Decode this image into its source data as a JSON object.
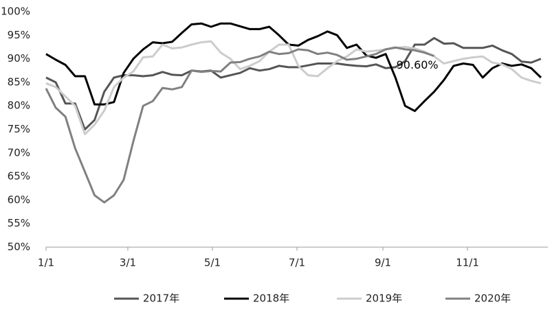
{
  "chart_data": {
    "type": "line",
    "xlim": [
      0,
      362
    ],
    "xticks": [
      {
        "value": 0,
        "label": "1/1"
      },
      {
        "value": 59,
        "label": "3/1"
      },
      {
        "value": 120,
        "label": "5/1"
      },
      {
        "value": 181,
        "label": "7/1"
      },
      {
        "value": 243,
        "label": "9/1"
      },
      {
        "value": 304,
        "label": "11/1"
      }
    ],
    "ylim": [
      50,
      100
    ],
    "yticks": [
      {
        "value": 50,
        "label": "50%"
      },
      {
        "value": 55,
        "label": "55%"
      },
      {
        "value": 60,
        "label": "60%"
      },
      {
        "value": 65,
        "label": "65%"
      },
      {
        "value": 70,
        "label": "70%"
      },
      {
        "value": 75,
        "label": "75%"
      },
      {
        "value": 80,
        "label": "80%"
      },
      {
        "value": 85,
        "label": "85%"
      },
      {
        "value": 90,
        "label": "90%"
      },
      {
        "value": 95,
        "label": "95%"
      },
      {
        "value": 100,
        "label": "100%"
      }
    ],
    "grid": false,
    "legend": "bottom",
    "x": [
      0,
      7,
      14,
      21,
      28,
      35,
      42,
      49,
      56,
      63,
      70,
      77,
      84,
      91,
      98,
      105,
      112,
      119,
      126,
      133,
      140,
      147,
      154,
      161,
      168,
      175,
      182,
      189,
      196,
      203,
      210,
      217,
      224,
      231,
      238,
      245,
      252,
      259,
      266,
      273,
      280,
      287,
      294,
      301,
      308,
      315,
      322,
      329,
      336,
      343,
      350,
      357
    ],
    "series": [
      {
        "name": "2017年",
        "color": "#555555",
        "values": [
          86,
          85,
          80.5,
          80.5,
          75,
          77,
          83,
          86,
          86.5,
          86.5,
          86.3,
          86.5,
          87.2,
          86.6,
          86.5,
          87.5,
          87.3,
          87.5,
          86,
          86.5,
          87,
          88,
          87.5,
          87.8,
          88.5,
          88.2,
          88.2,
          88.6,
          89,
          89,
          89,
          88.7,
          88.5,
          88.4,
          88.8,
          88,
          88.2,
          89.5,
          93,
          93,
          94.4,
          93.2,
          93.3,
          92.3,
          92.3,
          92.3,
          92.8,
          91.8,
          91,
          89.4,
          89.2,
          90
        ]
      },
      {
        "name": "2018年",
        "color": "#000000",
        "values": [
          91,
          89.8,
          88.7,
          86.3,
          86.3,
          80.3,
          80.3,
          80.8,
          87,
          90,
          92,
          93.5,
          93.3,
          93.6,
          95.5,
          97.3,
          97.5,
          96.8,
          97.5,
          97.5,
          96.9,
          96.3,
          96.3,
          96.8,
          95,
          93,
          92.8,
          94,
          94.8,
          95.8,
          95,
          92.3,
          93,
          90.7,
          90.2,
          91,
          86,
          80,
          78.9,
          81,
          83,
          85.5,
          88.5,
          89,
          88.7,
          86,
          88,
          89,
          88.5,
          88.8,
          88,
          86
        ]
      },
      {
        "name": "2019年",
        "color": "#cccccc",
        "values": [
          84.8,
          84,
          82,
          80,
          74,
          76,
          79,
          84,
          86,
          87.3,
          90.3,
          90.5,
          93,
          92.2,
          92.4,
          93,
          93.5,
          93.7,
          91.3,
          90,
          87.8,
          88.5,
          89.5,
          91.5,
          93,
          93,
          88.5,
          86.5,
          86.3,
          88,
          89.5,
          90.5,
          92,
          91.5,
          91.7,
          92,
          92.3,
          92.5,
          92.2,
          91.5,
          90.5,
          89,
          89.5,
          90,
          90.3,
          90.5,
          89.2,
          88.8,
          87.8,
          86,
          85.3,
          84.8
        ]
      },
      {
        "name": "2020年",
        "color": "#808080",
        "values": [
          83.7,
          79.6,
          77.7,
          71,
          66,
          61,
          59.5,
          61,
          64.3,
          72.5,
          80,
          81,
          83.8,
          83.5,
          84,
          87.5,
          87.2,
          87.4,
          87.3,
          89.2,
          89.3,
          90,
          90.5,
          91.5,
          91,
          91.2,
          92,
          91.8,
          91,
          91.3,
          90.8,
          89.8,
          90,
          90.5,
          91,
          92,
          92.4,
          92,
          91.8,
          91.3,
          90.6,
          null,
          null,
          null,
          null,
          null,
          null,
          null,
          null,
          null,
          null,
          null
        ],
        "value_labels": [
          null,
          null,
          null,
          null,
          null,
          null,
          null,
          null,
          null,
          null,
          null,
          null,
          null,
          null,
          null,
          null,
          null,
          null,
          null,
          null,
          null,
          null,
          null,
          null,
          null,
          null,
          null,
          null,
          null,
          null,
          null,
          null,
          null,
          null,
          null,
          null,
          null,
          null,
          null,
          null,
          "90.60%",
          null,
          null,
          null,
          null,
          null,
          null,
          null,
          null,
          null,
          null,
          null
        ]
      }
    ]
  }
}
